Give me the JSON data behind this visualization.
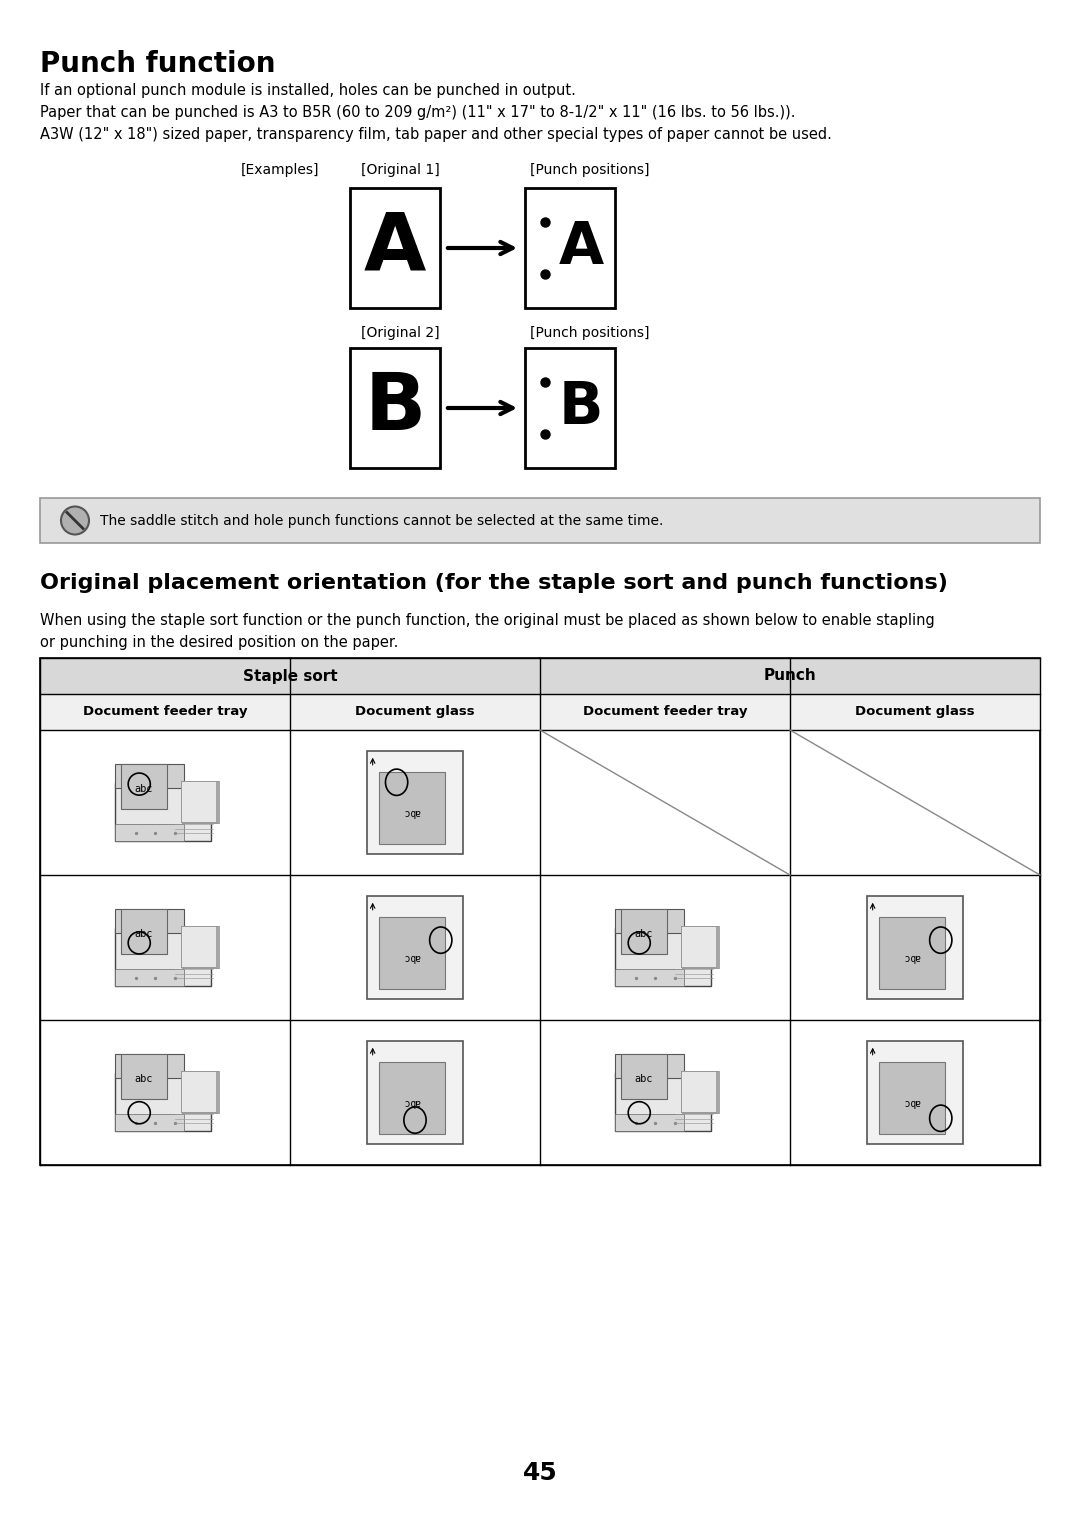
{
  "title": "Punch function",
  "body_text1": "If an optional punch module is installed, holes can be punched in output.",
  "body_text2": "Paper that can be punched is A3 to B5R (60 to 209 g/m²) (11\" x 17\" to 8-1/2\" x 11\" (16 lbs. to 56 lbs.)).",
  "body_text3": "A3W (12\" x 18\") sized paper, transparency film, tab paper and other special types of paper cannot be used.",
  "examples_label": "[Examples]",
  "orig1_label": "[Original 1]",
  "punch1_label": "[Punch positions]",
  "orig2_label": "[Original 2]",
  "punch2_label": "[Punch positions]",
  "note_text": "The saddle stitch and hole punch functions cannot be selected at the same time.",
  "section2_title": "Original placement orientation (for the staple sort and punch functions)",
  "section2_body1": "When using the staple sort function or the punch function, the original must be placed as shown below to enable stapling",
  "section2_body2": "or punching in the desired position on the paper.",
  "table_header1": "Staple sort",
  "table_header2": "Punch",
  "col1": "Document feeder tray",
  "col2": "Document glass",
  "col3": "Document feeder tray",
  "col4": "Document glass",
  "page_number": "45",
  "bg_color": "#ffffff",
  "table_header_bg": "#d8d8d8",
  "col_header_bg": "#f0f0f0",
  "note_bg": "#e0e0e0"
}
